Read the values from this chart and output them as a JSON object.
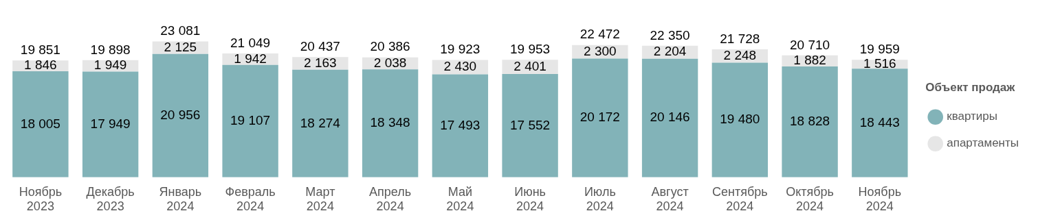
{
  "chart_data": {
    "type": "bar",
    "stacked": true,
    "legend": "right",
    "legend_title": "Объект продаж",
    "grid": false,
    "data_labels": true,
    "categories": [
      "Ноябрь 2023",
      "Декабрь 2023",
      "Январь 2024",
      "Февраль 2024",
      "Март 2024",
      "Апрель 2024",
      "Май 2024",
      "Июнь 2024",
      "Июль 2024",
      "Август 2024",
      "Сентябрь 2024",
      "Октябрь 2024",
      "Ноябрь 2024"
    ],
    "series": [
      {
        "name": "квартиры",
        "color": "#82b3b8",
        "values": [
          18005,
          17949,
          20956,
          19107,
          18274,
          18348,
          17493,
          17552,
          20172,
          20146,
          19480,
          18828,
          18443
        ]
      },
      {
        "name": "апартаменты",
        "color": "#e6e6e6",
        "values": [
          1846,
          1949,
          2125,
          1942,
          2163,
          2038,
          2430,
          2401,
          2300,
          2204,
          2248,
          1882,
          1516
        ]
      }
    ],
    "totals": [
      "19 851",
      "19 898",
      "23 081",
      "21 049",
      "20 437",
      "20 386",
      "19 923",
      "19 953",
      "22 472",
      "22 350",
      "21 728",
      "20 710",
      "19 959"
    ]
  }
}
